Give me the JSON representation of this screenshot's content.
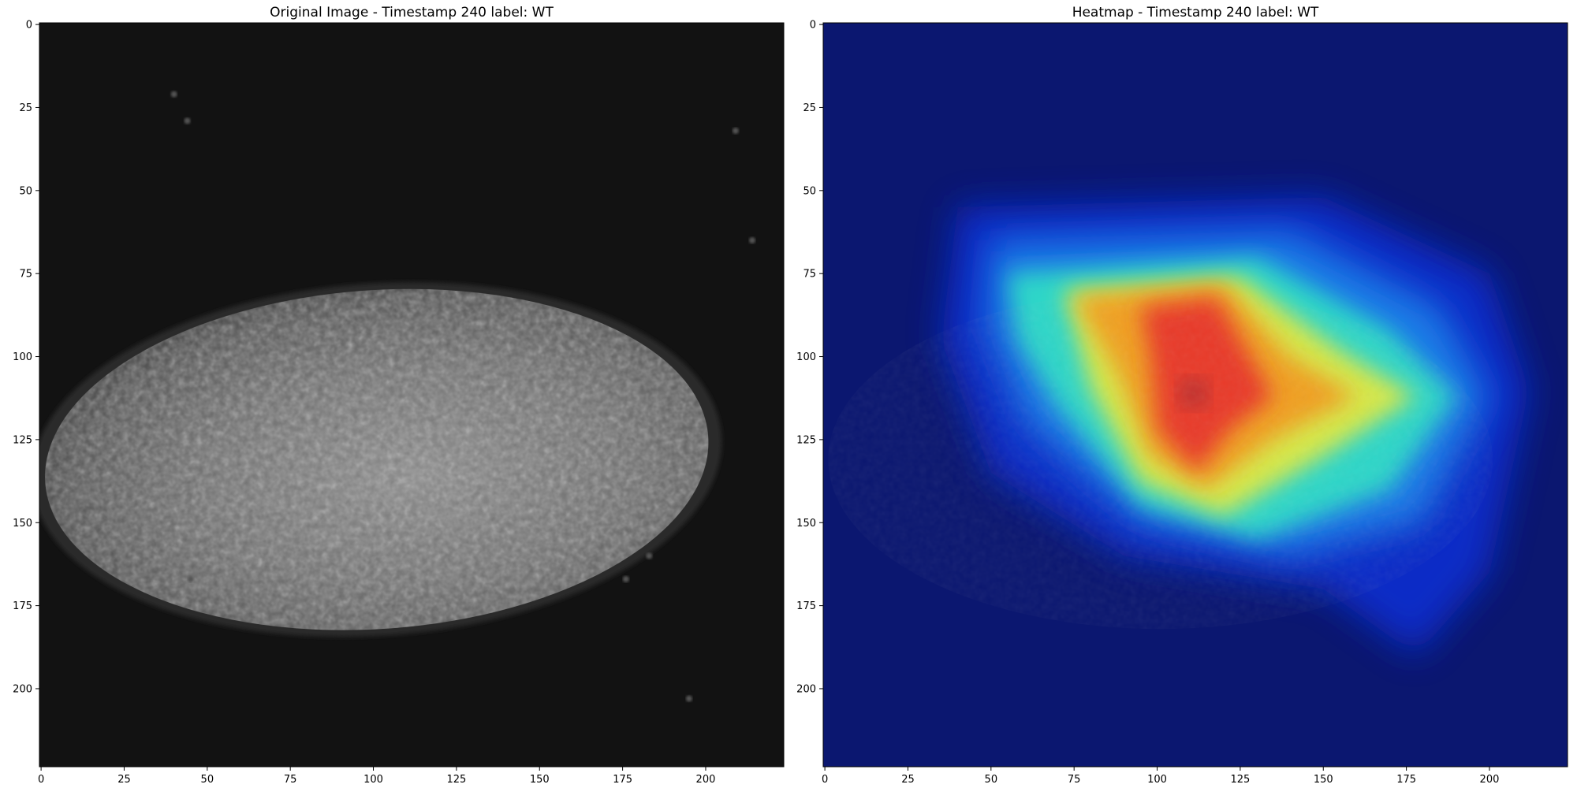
{
  "chart_data": [
    {
      "type": "image",
      "title": "Original Image - Timestamp 240 label: WT",
      "colormap": "gray",
      "xlim": [
        0,
        224
      ],
      "ylim": [
        224,
        0
      ],
      "xticks": [
        0,
        25,
        50,
        75,
        100,
        125,
        150,
        175,
        200
      ],
      "yticks": [
        0,
        25,
        50,
        75,
        100,
        125,
        150,
        175,
        200
      ],
      "background_color": "#121212",
      "blob": {
        "center_x": 101,
        "center_y": 131,
        "radius_x": 100,
        "radius_y": 51
      },
      "bright_spots": [
        {
          "x": 40,
          "y": 21
        },
        {
          "x": 44,
          "y": 29
        },
        {
          "x": 209,
          "y": 32
        },
        {
          "x": 214,
          "y": 65
        },
        {
          "x": 183,
          "y": 160
        },
        {
          "x": 176,
          "y": 167
        },
        {
          "x": 45,
          "y": 167
        },
        {
          "x": 195,
          "y": 203
        }
      ]
    },
    {
      "type": "heatmap",
      "title": "Heatmap - Timestamp 240 label: WT",
      "colormap": "jet",
      "xlim": [
        0,
        224
      ],
      "ylim": [
        224,
        0
      ],
      "xticks": [
        0,
        25,
        50,
        75,
        100,
        125,
        150,
        175,
        200
      ],
      "yticks": [
        0,
        25,
        50,
        75,
        100,
        125,
        150,
        175,
        200
      ],
      "peak": {
        "x": 111,
        "y": 111
      },
      "hot_region": {
        "x_range": [
          70,
          125
        ],
        "y_range": [
          75,
          90
        ]
      },
      "low_color": "#0b1770"
    }
  ]
}
